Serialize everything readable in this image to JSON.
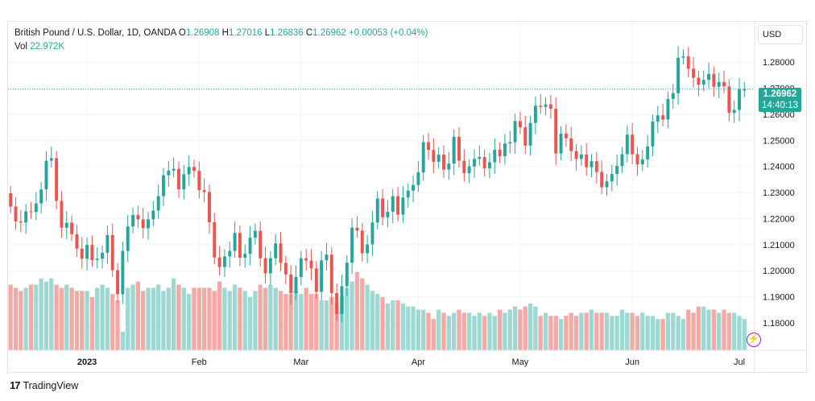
{
  "legend": {
    "symbol": "British Pound / U.S. Dollar, 1D, OANDA",
    "o_label": "O",
    "o_value": "1.26908",
    "h_label": "H",
    "h_value": "1.27016",
    "l_label": "L",
    "l_value": "1.26836",
    "c_label": "C",
    "c_value": "1.26962",
    "change": "+0.00053 (+0.04%)",
    "vol_label": "Vol",
    "vol_value": "22.972K"
  },
  "currency": "USD",
  "last_price": {
    "price": "1.26962",
    "countdown": "14:40:13"
  },
  "brand": {
    "logo": "17",
    "name": "TradingView"
  },
  "colors": {
    "up": "#26a69a",
    "down": "#ef5350",
    "up_vol": "#9ed8d2",
    "down_vol": "#f4a9a6",
    "grid": "#f0f3fa"
  },
  "chart_data": {
    "type": "candlestick",
    "y_ticks": [
      "1.28000",
      "1.27000",
      "1.26000",
      "1.25000",
      "1.24000",
      "1.23000",
      "1.22000",
      "1.21000",
      "1.20000",
      "1.19000",
      "1.18000"
    ],
    "ylim": [
      1.1695,
      1.2955
    ],
    "last_value": 1.26962,
    "x_ticks": [
      {
        "label": "2023",
        "index": 15,
        "bold": true
      },
      {
        "label": "Feb",
        "index": 37
      },
      {
        "label": "Mar",
        "index": 57
      },
      {
        "label": "Apr",
        "index": 80
      },
      {
        "label": "May",
        "index": 100
      },
      {
        "label": "Jun",
        "index": 122
      },
      {
        "label": "Jul",
        "index": 143
      }
    ],
    "candles": [
      [
        1.2297,
        1.2246
      ],
      [
        1.2246,
        1.2189
      ],
      [
        1.2189,
        1.2185
      ],
      [
        1.2185,
        1.2228
      ],
      [
        1.2228,
        1.2226
      ],
      [
        1.2226,
        1.2258
      ],
      [
        1.2258,
        1.2312
      ],
      [
        1.2312,
        1.2422
      ],
      [
        1.2422,
        1.2432
      ],
      [
        1.2432,
        1.2268
      ],
      [
        1.2268,
        1.2165
      ],
      [
        1.2165,
        1.2184
      ],
      [
        1.2184,
        1.214
      ],
      [
        1.214,
        1.2085
      ],
      [
        1.2085,
        1.2046
      ],
      [
        1.2046,
        1.2099
      ],
      [
        1.2099,
        1.2041
      ],
      [
        1.2041,
        1.2046
      ],
      [
        1.2046,
        1.2069
      ],
      [
        1.2069,
        1.2137
      ],
      [
        1.2137,
        1.2002
      ],
      [
        1.2002,
        1.191
      ],
      [
        1.191,
        1.2076
      ],
      [
        1.2076,
        1.217
      ],
      [
        1.217,
        1.2214
      ],
      [
        1.2214,
        1.2197
      ],
      [
        1.2197,
        1.2163
      ],
      [
        1.2163,
        1.2197
      ],
      [
        1.2197,
        1.2231
      ],
      [
        1.2231,
        1.2286
      ],
      [
        1.2286,
        1.2366
      ],
      [
        1.2366,
        1.2384
      ],
      [
        1.2384,
        1.2391
      ],
      [
        1.2391,
        1.2312
      ],
      [
        1.2312,
        1.237
      ],
      [
        1.237,
        1.2398
      ],
      [
        1.2398,
        1.2383
      ],
      [
        1.2383,
        1.2309
      ],
      [
        1.2309,
        1.2302
      ],
      [
        1.2302,
        1.2186
      ],
      [
        1.2186,
        1.2051
      ],
      [
        1.2051,
        1.2014
      ],
      [
        1.2014,
        1.2055
      ],
      [
        1.2055,
        1.2076
      ],
      [
        1.2076,
        1.2145
      ],
      [
        1.2145,
        1.205
      ],
      [
        1.205,
        1.2065
      ],
      [
        1.2065,
        1.2127
      ],
      [
        1.2127,
        1.2153
      ],
      [
        1.2153,
        1.2048
      ],
      [
        1.2048,
        1.199
      ],
      [
        1.199,
        1.2048
      ],
      [
        1.2048,
        1.2105
      ],
      [
        1.2105,
        1.203
      ],
      [
        1.203,
        1.1986
      ],
      [
        1.1986,
        1.1914
      ],
      [
        1.1914,
        1.1976
      ],
      [
        1.1976,
        1.2048
      ],
      [
        1.2048,
        1.2039
      ],
      [
        1.2039,
        1.2009
      ],
      [
        1.2009,
        1.1919
      ],
      [
        1.1919,
        1.204
      ],
      [
        1.204,
        1.2062
      ],
      [
        1.2062,
        1.1914
      ],
      [
        1.1914,
        1.1834
      ],
      [
        1.1834,
        1.1941
      ],
      [
        1.1941,
        1.2031
      ],
      [
        1.2031,
        1.2165
      ],
      [
        1.2165,
        1.2154
      ],
      [
        1.2154,
        1.2067
      ],
      [
        1.2067,
        1.2101
      ],
      [
        1.2101,
        1.2185
      ],
      [
        1.2185,
        1.2277
      ],
      [
        1.2277,
        1.2205
      ],
      [
        1.2205,
        1.2226
      ],
      [
        1.2226,
        1.2286
      ],
      [
        1.2286,
        1.2215
      ],
      [
        1.2215,
        1.2281
      ],
      [
        1.2281,
        1.2307
      ],
      [
        1.2307,
        1.2329
      ],
      [
        1.2329,
        1.2377
      ],
      [
        1.2377,
        1.2493
      ],
      [
        1.2493,
        1.2463
      ],
      [
        1.2463,
        1.2418
      ],
      [
        1.2418,
        1.2445
      ],
      [
        1.2445,
        1.2388
      ],
      [
        1.2388,
        1.2411
      ],
      [
        1.2411,
        1.2514
      ],
      [
        1.2514,
        1.2422
      ],
      [
        1.2422,
        1.2374
      ],
      [
        1.2374,
        1.24
      ],
      [
        1.24,
        1.2429
      ],
      [
        1.2429,
        1.2436
      ],
      [
        1.2436,
        1.2393
      ],
      [
        1.2393,
        1.2416
      ],
      [
        1.2416,
        1.2464
      ],
      [
        1.2464,
        1.2439
      ],
      [
        1.2439,
        1.2488
      ],
      [
        1.2488,
        1.2493
      ],
      [
        1.2493,
        1.2574
      ],
      [
        1.2574,
        1.255
      ],
      [
        1.255,
        1.248
      ],
      [
        1.248,
        1.2567
      ],
      [
        1.2567,
        1.2633
      ],
      [
        1.2633,
        1.2628
      ],
      [
        1.2628,
        1.2638
      ],
      [
        1.2638,
        1.2621
      ],
      [
        1.2621,
        1.245
      ],
      [
        1.245,
        1.2526
      ],
      [
        1.2526,
        1.2508
      ],
      [
        1.2508,
        1.2459
      ],
      [
        1.2459,
        1.2429
      ],
      [
        1.2429,
        1.2446
      ],
      [
        1.2446,
        1.2397
      ],
      [
        1.2397,
        1.242
      ],
      [
        1.242,
        1.2379
      ],
      [
        1.2379,
        1.232
      ],
      [
        1.232,
        1.2343
      ],
      [
        1.2343,
        1.2371
      ],
      [
        1.2371,
        1.2402
      ],
      [
        1.2402,
        1.2447
      ],
      [
        1.2447,
        1.2522
      ],
      [
        1.2522,
        1.2447
      ],
      [
        1.2447,
        1.2408
      ],
      [
        1.2408,
        1.2427
      ],
      [
        1.2427,
        1.2477
      ],
      [
        1.2477,
        1.2572
      ],
      [
        1.2572,
        1.2596
      ],
      [
        1.2596,
        1.258
      ],
      [
        1.258,
        1.2659
      ],
      [
        1.2659,
        1.2681
      ],
      [
        1.2681,
        1.2817
      ],
      [
        1.2817,
        1.2822
      ],
      [
        1.2822,
        1.2775
      ],
      [
        1.2775,
        1.274
      ],
      [
        1.274,
        1.2714
      ],
      [
        1.2714,
        1.2732
      ],
      [
        1.2732,
        1.2755
      ],
      [
        1.2755,
        1.2706
      ],
      [
        1.2706,
        1.2724
      ],
      [
        1.2724,
        1.2707
      ],
      [
        1.2707,
        1.2605
      ],
      [
        1.2605,
        1.2617
      ],
      [
        1.2617,
        1.2696
      ],
      [
        1.2691,
        1.2696
      ]
    ],
    "volume": [
      21,
      20,
      19,
      20,
      21,
      21,
      23,
      22,
      23,
      21,
      20,
      21,
      20,
      19,
      19,
      19,
      17,
      20,
      21,
      20,
      18,
      16,
      6,
      20,
      21,
      22,
      19,
      20,
      20,
      21,
      19,
      20,
      23,
      21,
      20,
      18,
      20,
      20,
      20,
      20,
      19,
      22,
      20,
      19,
      21,
      20,
      19,
      17,
      19,
      21,
      20,
      21,
      20,
      19,
      18,
      18,
      19,
      18,
      20,
      18,
      18,
      16,
      16,
      17,
      15,
      17,
      20,
      22,
      25,
      23,
      21,
      19,
      18,
      17,
      15,
      16,
      16,
      15,
      14,
      14,
      13,
      13,
      12,
      10,
      13,
      12,
      11,
      12,
      13,
      12,
      12,
      11,
      12,
      11,
      12,
      11,
      13,
      12,
      13,
      14,
      13,
      14,
      15,
      14,
      11,
      12,
      11,
      11,
      10,
      11,
      12,
      11,
      12,
      12,
      13,
      12,
      12,
      12,
      11,
      11,
      13,
      12,
      12,
      11,
      12,
      11,
      11,
      10,
      10,
      12,
      12,
      11,
      10,
      13,
      12,
      14,
      14,
      13,
      13,
      12,
      13,
      12,
      12,
      11,
      10
    ],
    "vol_max": 25
  }
}
